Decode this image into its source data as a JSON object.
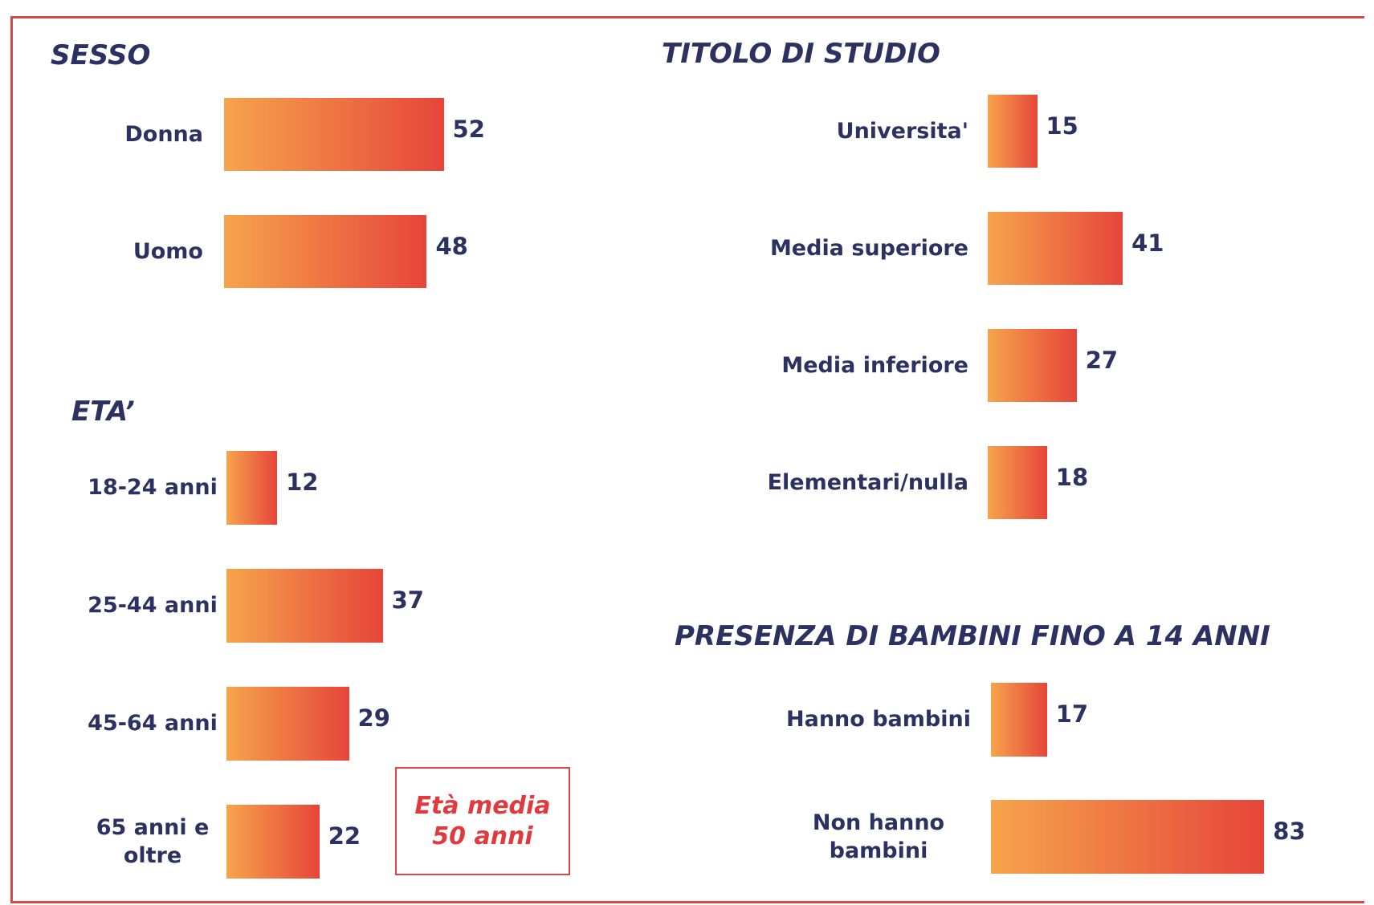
{
  "chart_data": [
    {
      "type": "hbar",
      "title": "SESSO",
      "categories": [
        "Donna",
        "Uomo"
      ],
      "values": [
        52,
        48
      ],
      "xlim": [
        0,
        100
      ],
      "colors": [
        "#f6a44c",
        "#e6453a"
      ]
    },
    {
      "type": "hbar",
      "title": "ETA’",
      "categories": [
        "18-24 anni",
        "25-44 anni",
        "45-64 anni",
        "65 anni e oltre"
      ],
      "values": [
        12,
        37,
        29,
        22
      ],
      "xlim": [
        0,
        100
      ],
      "colors": [
        "#f6a44c",
        "#e6453a"
      ],
      "annotation": [
        "Età media",
        "50 anni"
      ]
    },
    {
      "type": "hbar",
      "title": "TITOLO DI STUDIO",
      "categories": [
        "Universita'",
        "Media superiore",
        "Media inferiore",
        "Elementari/nulla"
      ],
      "values": [
        15,
        41,
        27,
        18
      ],
      "xlim": [
        0,
        100
      ],
      "colors": [
        "#f6a44c",
        "#e6453a"
      ]
    },
    {
      "type": "hbar",
      "title": "PRESENZA DI BAMBINI FINO A 14 ANNI",
      "categories": [
        "Hanno bambini",
        "Non hanno bambini"
      ],
      "values": [
        17,
        83
      ],
      "xlim": [
        0,
        100
      ],
      "colors": [
        "#f6a44c",
        "#e6453a"
      ]
    }
  ]
}
